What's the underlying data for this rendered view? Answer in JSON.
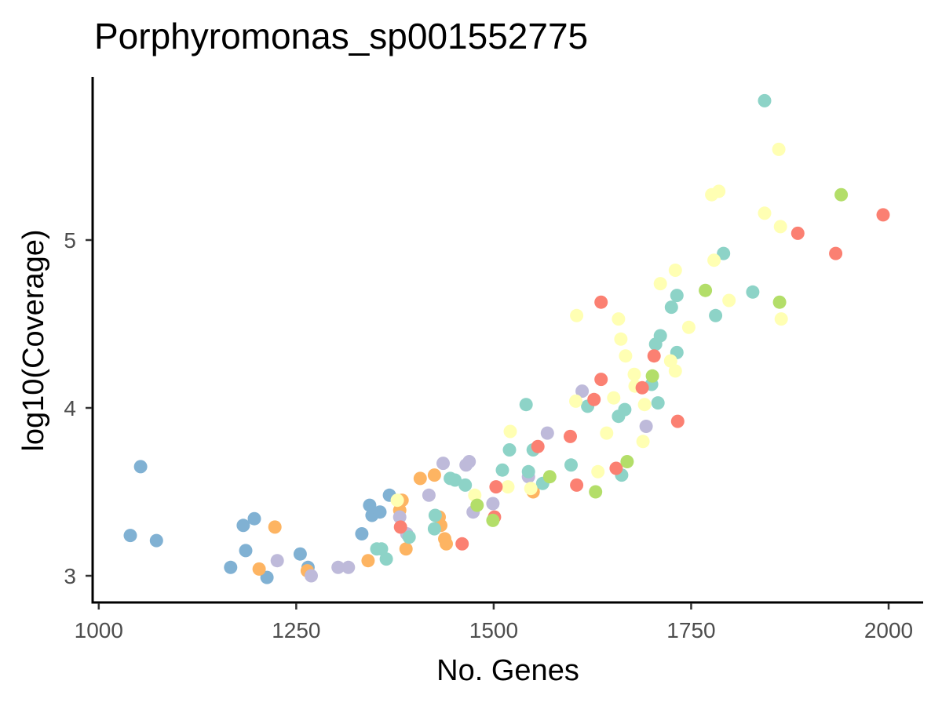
{
  "chart_data": {
    "type": "scatter",
    "title": "Porphyromonas_sp001552775",
    "xlabel": "No. Genes",
    "ylabel": "log10(Coverage)",
    "xlim": [
      990,
      2010
    ],
    "ylim": [
      2.85,
      5.95
    ],
    "xticks": [
      1000,
      1250,
      1500,
      1750,
      2000
    ],
    "yticks": [
      3,
      4,
      5
    ],
    "grid": false,
    "legend": "none",
    "palette": {
      "blue": "#80b1d3",
      "orange": "#fdb462",
      "lavender": "#bebada",
      "teal": "#8dd3c7",
      "yellow": "#ffffb3",
      "red": "#fb8072",
      "green": "#b3de69"
    },
    "series": [
      {
        "color": "#80b1d3",
        "points": [
          [
            1040,
            3.24
          ],
          [
            1053,
            3.65
          ],
          [
            1073,
            3.21
          ],
          [
            1167,
            3.05
          ],
          [
            1183,
            3.3
          ],
          [
            1186,
            3.15
          ],
          [
            1197,
            3.34
          ],
          [
            1213,
            2.99
          ],
          [
            1255,
            3.13
          ],
          [
            1265,
            3.05
          ],
          [
            1333,
            3.25
          ],
          [
            1343,
            3.42
          ],
          [
            1346,
            3.36
          ],
          [
            1356,
            3.38
          ],
          [
            1368,
            3.48
          ]
        ]
      },
      {
        "color": "#fdb462",
        "points": [
          [
            1223,
            3.29
          ],
          [
            1203,
            3.04
          ],
          [
            1264,
            3.03
          ],
          [
            1341,
            3.09
          ],
          [
            1381,
            3.39
          ],
          [
            1384,
            3.45
          ],
          [
            1389,
            3.16
          ],
          [
            1407,
            3.58
          ],
          [
            1425,
            3.6
          ],
          [
            1431,
            3.35
          ],
          [
            1433,
            3.3
          ],
          [
            1438,
            3.22
          ],
          [
            1440,
            3.19
          ],
          [
            1550,
            3.5
          ]
        ]
      },
      {
        "color": "#bebada",
        "points": [
          [
            1226,
            3.09
          ],
          [
            1269,
            3.0
          ],
          [
            1303,
            3.05
          ],
          [
            1316,
            3.05
          ],
          [
            1381,
            3.35
          ],
          [
            1390,
            3.25
          ],
          [
            1418,
            3.48
          ],
          [
            1436,
            3.67
          ],
          [
            1465,
            3.66
          ],
          [
            1469,
            3.68
          ],
          [
            1474,
            3.38
          ],
          [
            1499,
            3.43
          ],
          [
            1544,
            3.59
          ],
          [
            1568,
            3.85
          ],
          [
            1612,
            4.1
          ],
          [
            1693,
            3.89
          ]
        ]
      },
      {
        "color": "#8dd3c7",
        "points": [
          [
            1352,
            3.16
          ],
          [
            1358,
            3.16
          ],
          [
            1364,
            3.1
          ],
          [
            1393,
            3.23
          ],
          [
            1425,
            3.28
          ],
          [
            1426,
            3.36
          ],
          [
            1445,
            3.58
          ],
          [
            1451,
            3.57
          ],
          [
            1464,
            3.54
          ],
          [
            1511,
            3.63
          ],
          [
            1520,
            3.75
          ],
          [
            1541,
            4.02
          ],
          [
            1544,
            3.62
          ],
          [
            1550,
            3.75
          ],
          [
            1562,
            3.55
          ],
          [
            1598,
            3.66
          ],
          [
            1619,
            4.01
          ],
          [
            1658,
            3.95
          ],
          [
            1662,
            3.6
          ],
          [
            1666,
            3.99
          ],
          [
            1700,
            4.14
          ],
          [
            1705,
            4.38
          ],
          [
            1708,
            4.03
          ],
          [
            1711,
            4.43
          ],
          [
            1725,
            4.6
          ],
          [
            1732,
            4.67
          ],
          [
            1732,
            4.33
          ],
          [
            1781,
            4.55
          ],
          [
            1791,
            4.92
          ],
          [
            1828,
            4.69
          ],
          [
            1843,
            5.83
          ]
        ]
      },
      {
        "color": "#ffffb3",
        "points": [
          [
            1378,
            3.45
          ],
          [
            1476,
            3.48
          ],
          [
            1518,
            3.53
          ],
          [
            1521,
            3.86
          ],
          [
            1547,
            3.52
          ],
          [
            1604,
            4.04
          ],
          [
            1605,
            4.55
          ],
          [
            1632,
            3.62
          ],
          [
            1643,
            3.85
          ],
          [
            1652,
            4.06
          ],
          [
            1658,
            4.53
          ],
          [
            1661,
            4.41
          ],
          [
            1667,
            4.31
          ],
          [
            1678,
            4.2
          ],
          [
            1679,
            4.13
          ],
          [
            1689,
            3.8
          ],
          [
            1691,
            4.02
          ],
          [
            1711,
            4.74
          ],
          [
            1724,
            4.28
          ],
          [
            1730,
            4.22
          ],
          [
            1730,
            4.82
          ],
          [
            1747,
            4.48
          ],
          [
            1776,
            5.27
          ],
          [
            1779,
            4.88
          ],
          [
            1785,
            5.29
          ],
          [
            1798,
            4.64
          ],
          [
            1843,
            5.16
          ],
          [
            1861,
            5.54
          ],
          [
            1863,
            5.08
          ],
          [
            1864,
            4.53
          ]
        ]
      },
      {
        "color": "#fb8072",
        "points": [
          [
            1382,
            3.29
          ],
          [
            1460,
            3.19
          ],
          [
            1501,
            3.35
          ],
          [
            1503,
            3.53
          ],
          [
            1556,
            3.77
          ],
          [
            1597,
            3.83
          ],
          [
            1605,
            3.54
          ],
          [
            1627,
            4.05
          ],
          [
            1636,
            4.17
          ],
          [
            1636,
            4.63
          ],
          [
            1655,
            3.64
          ],
          [
            1688,
            4.12
          ],
          [
            1703,
            4.31
          ],
          [
            1733,
            3.92
          ],
          [
            1885,
            5.04
          ],
          [
            1933,
            4.92
          ],
          [
            1993,
            5.15
          ]
        ]
      },
      {
        "color": "#b3de69",
        "points": [
          [
            1479,
            3.42
          ],
          [
            1499,
            3.33
          ],
          [
            1571,
            3.59
          ],
          [
            1629,
            3.5
          ],
          [
            1669,
            3.68
          ],
          [
            1701,
            4.19
          ],
          [
            1768,
            4.7
          ],
          [
            1862,
            4.63
          ],
          [
            1940,
            5.27
          ]
        ]
      }
    ]
  }
}
